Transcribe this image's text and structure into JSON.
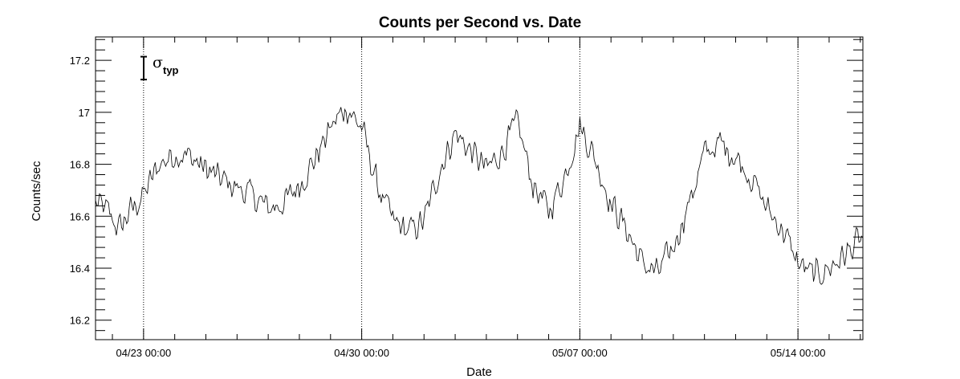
{
  "chart_data": {
    "type": "line",
    "title": "Counts per Second vs. Date",
    "xlabel": "Date",
    "ylabel": "Counts/sec",
    "xlim": [
      "2022-04-21T11:00",
      "2022-05-16T02:00"
    ],
    "ylim": [
      16.125,
      17.29
    ],
    "x_ticks": [
      "2022-04-23T00:00",
      "2022-04-30T00:00",
      "2022-05-07T00:00",
      "2022-05-14T00:00"
    ],
    "x_tick_labels": [
      "04/23 00:00",
      "04/30 00:00",
      "05/07 00:00",
      "05/14 00:00"
    ],
    "y_ticks": [
      16.2,
      16.4,
      16.6,
      16.8,
      17,
      17.2
    ],
    "y_tick_labels": [
      "16.2",
      "16.4",
      "16.6",
      "16.8",
      "17",
      "17.2"
    ],
    "grid": "vertical dotted at major x ticks",
    "annotation": {
      "symbol": "σ",
      "subscript": "typ",
      "error_bar_center": 17.17,
      "error_bar_halfwidth": 0.044
    },
    "series": [
      {
        "color": "#000000",
        "x": [
          "2022-04-21T11:00",
          "2022-04-21T20:00",
          "2022-04-22T05:00",
          "2022-04-22T14:00",
          "2022-04-23T00:00",
          "2022-04-23T12:00",
          "2022-04-24T00:00",
          "2022-04-24T12:00",
          "2022-04-25T00:00",
          "2022-04-25T12:00",
          "2022-04-26T00:00",
          "2022-04-26T12:00",
          "2022-04-27T00:00",
          "2022-04-27T12:00",
          "2022-04-28T00:00",
          "2022-04-28T12:00",
          "2022-04-29T00:00",
          "2022-04-29T12:00",
          "2022-04-30T00:00",
          "2022-04-30T12:00",
          "2022-05-01T00:00",
          "2022-05-01T12:00",
          "2022-05-02T00:00",
          "2022-05-02T12:00",
          "2022-05-03T00:00",
          "2022-05-03T12:00",
          "2022-05-04T00:00",
          "2022-05-04T12:00",
          "2022-05-05T00:00",
          "2022-05-05T12:00",
          "2022-05-06T00:00",
          "2022-05-06T12:00",
          "2022-05-07T00:00",
          "2022-05-07T12:00",
          "2022-05-08T00:00",
          "2022-05-08T12:00",
          "2022-05-09T00:00",
          "2022-05-09T12:00",
          "2022-05-10T00:00",
          "2022-05-10T12:00",
          "2022-05-11T00:00",
          "2022-05-11T12:00",
          "2022-05-12T00:00",
          "2022-05-12T12:00",
          "2022-05-13T00:00",
          "2022-05-13T12:00",
          "2022-05-14T00:00",
          "2022-05-14T12:00",
          "2022-05-15T00:00",
          "2022-05-15T12:00",
          "2022-05-16T02:00"
        ],
        "y": [
          16.65,
          16.62,
          16.55,
          16.62,
          16.68,
          16.8,
          16.84,
          16.83,
          16.78,
          16.74,
          16.71,
          16.68,
          16.63,
          16.65,
          16.72,
          16.82,
          16.94,
          17.02,
          16.94,
          16.72,
          16.58,
          16.54,
          16.58,
          16.78,
          16.92,
          16.85,
          16.78,
          16.85,
          16.96,
          16.72,
          16.62,
          16.75,
          16.95,
          16.82,
          16.65,
          16.55,
          16.42,
          16.38,
          16.48,
          16.65,
          16.84,
          16.88,
          16.83,
          16.75,
          16.63,
          16.55,
          16.42,
          16.37,
          16.4,
          16.45,
          16.52
        ]
      }
    ]
  }
}
